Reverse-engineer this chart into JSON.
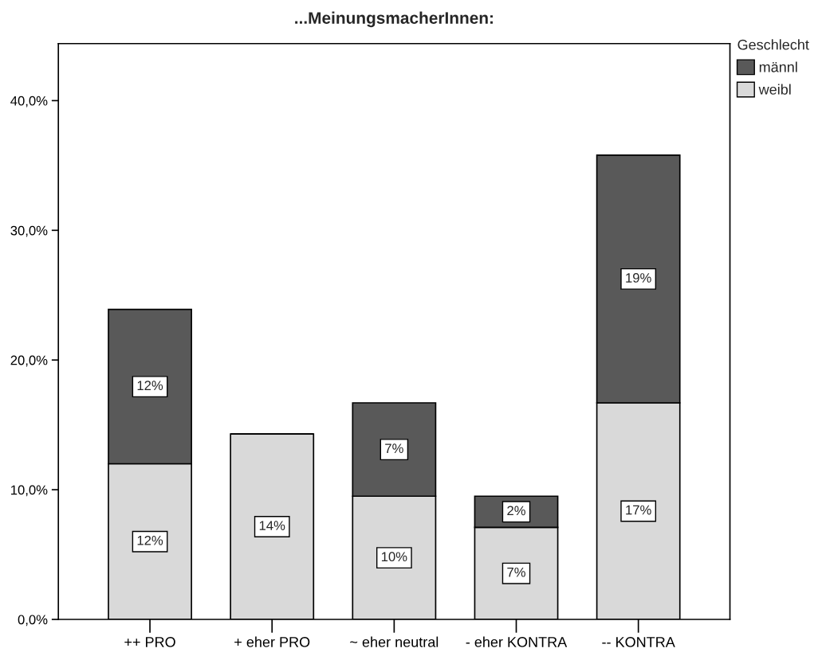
{
  "chart_data": {
    "type": "bar",
    "title": "...MeinungsmacherInnen:",
    "categories": [
      "++ PRO",
      "+ eher PRO",
      "~ eher neutral",
      "- eher KONTRA",
      "-- KONTRA"
    ],
    "stacked": true,
    "series": [
      {
        "name": "weibl",
        "color": "#d9d9d9",
        "values": [
          12.0,
          14.3,
          9.5,
          7.1,
          16.7
        ],
        "value_labels": [
          "12%",
          "14%",
          "10%",
          "7%",
          "17%"
        ]
      },
      {
        "name": "männl",
        "color": "#595959",
        "values": [
          11.9,
          null,
          7.2,
          2.4,
          19.1
        ],
        "value_labels": [
          "12%",
          null,
          "7%",
          "2%",
          "19%"
        ]
      }
    ],
    "ylim": [
      0,
      44.4
    ],
    "yticks": [
      {
        "value": 0,
        "label": "0,0%"
      },
      {
        "value": 10,
        "label": "10,0%"
      },
      {
        "value": 20,
        "label": "20,0%"
      },
      {
        "value": 30,
        "label": "30,0%"
      },
      {
        "value": 40,
        "label": "40,0%"
      }
    ],
    "legend": "top right",
    "legend_title": "Geschlecht",
    "grid": false
  }
}
